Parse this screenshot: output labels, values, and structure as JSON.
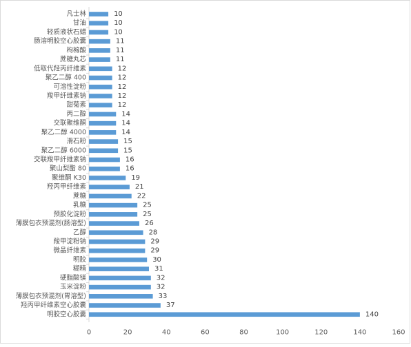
{
  "chart_data": {
    "type": "bar",
    "orientation": "horizontal",
    "categories": [
      "凡士林",
      "甘油",
      "轻质液状石蜡",
      "肠溶明胶空心胶囊",
      "枸橼酸",
      "蔗糖丸芯",
      "低取代羟丙纤维素",
      "聚乙二醇 400",
      "可溶性淀粉",
      "羧甲纤维素钠",
      "甜菊素",
      "丙二醇",
      "交联聚维酮",
      "聚乙二醇 4000",
      "滑石粉",
      "聚乙二醇 6000",
      "交联羧甲纤维素钠",
      "聚山梨酯 80",
      "聚维酮 K30",
      "羟丙甲纤维素",
      "蔗糖",
      "乳糖",
      "预胶化淀粉",
      "薄膜包衣预混剂(肠溶型)",
      "乙醇",
      "羧甲淀粉钠",
      "微晶纤维素",
      "明胶",
      "糊精",
      "硬脂酸镁",
      "玉米淀粉",
      "薄膜包衣预混剂(胃溶型)",
      "羟丙甲纤维素空心胶囊",
      "明胶空心胶囊"
    ],
    "values": [
      10,
      10,
      10,
      11,
      11,
      11,
      12,
      12,
      12,
      12,
      12,
      14,
      14,
      14,
      15,
      15,
      16,
      16,
      19,
      21,
      22,
      25,
      25,
      26,
      28,
      29,
      29,
      30,
      31,
      32,
      32,
      33,
      37,
      140
    ],
    "xlim": [
      0,
      160
    ],
    "x_ticks": [
      0,
      20,
      40,
      60,
      80,
      100,
      120,
      140,
      160
    ],
    "data_labels": true,
    "grid": false,
    "legend": "none",
    "bar_color": "#5b9bd5"
  }
}
